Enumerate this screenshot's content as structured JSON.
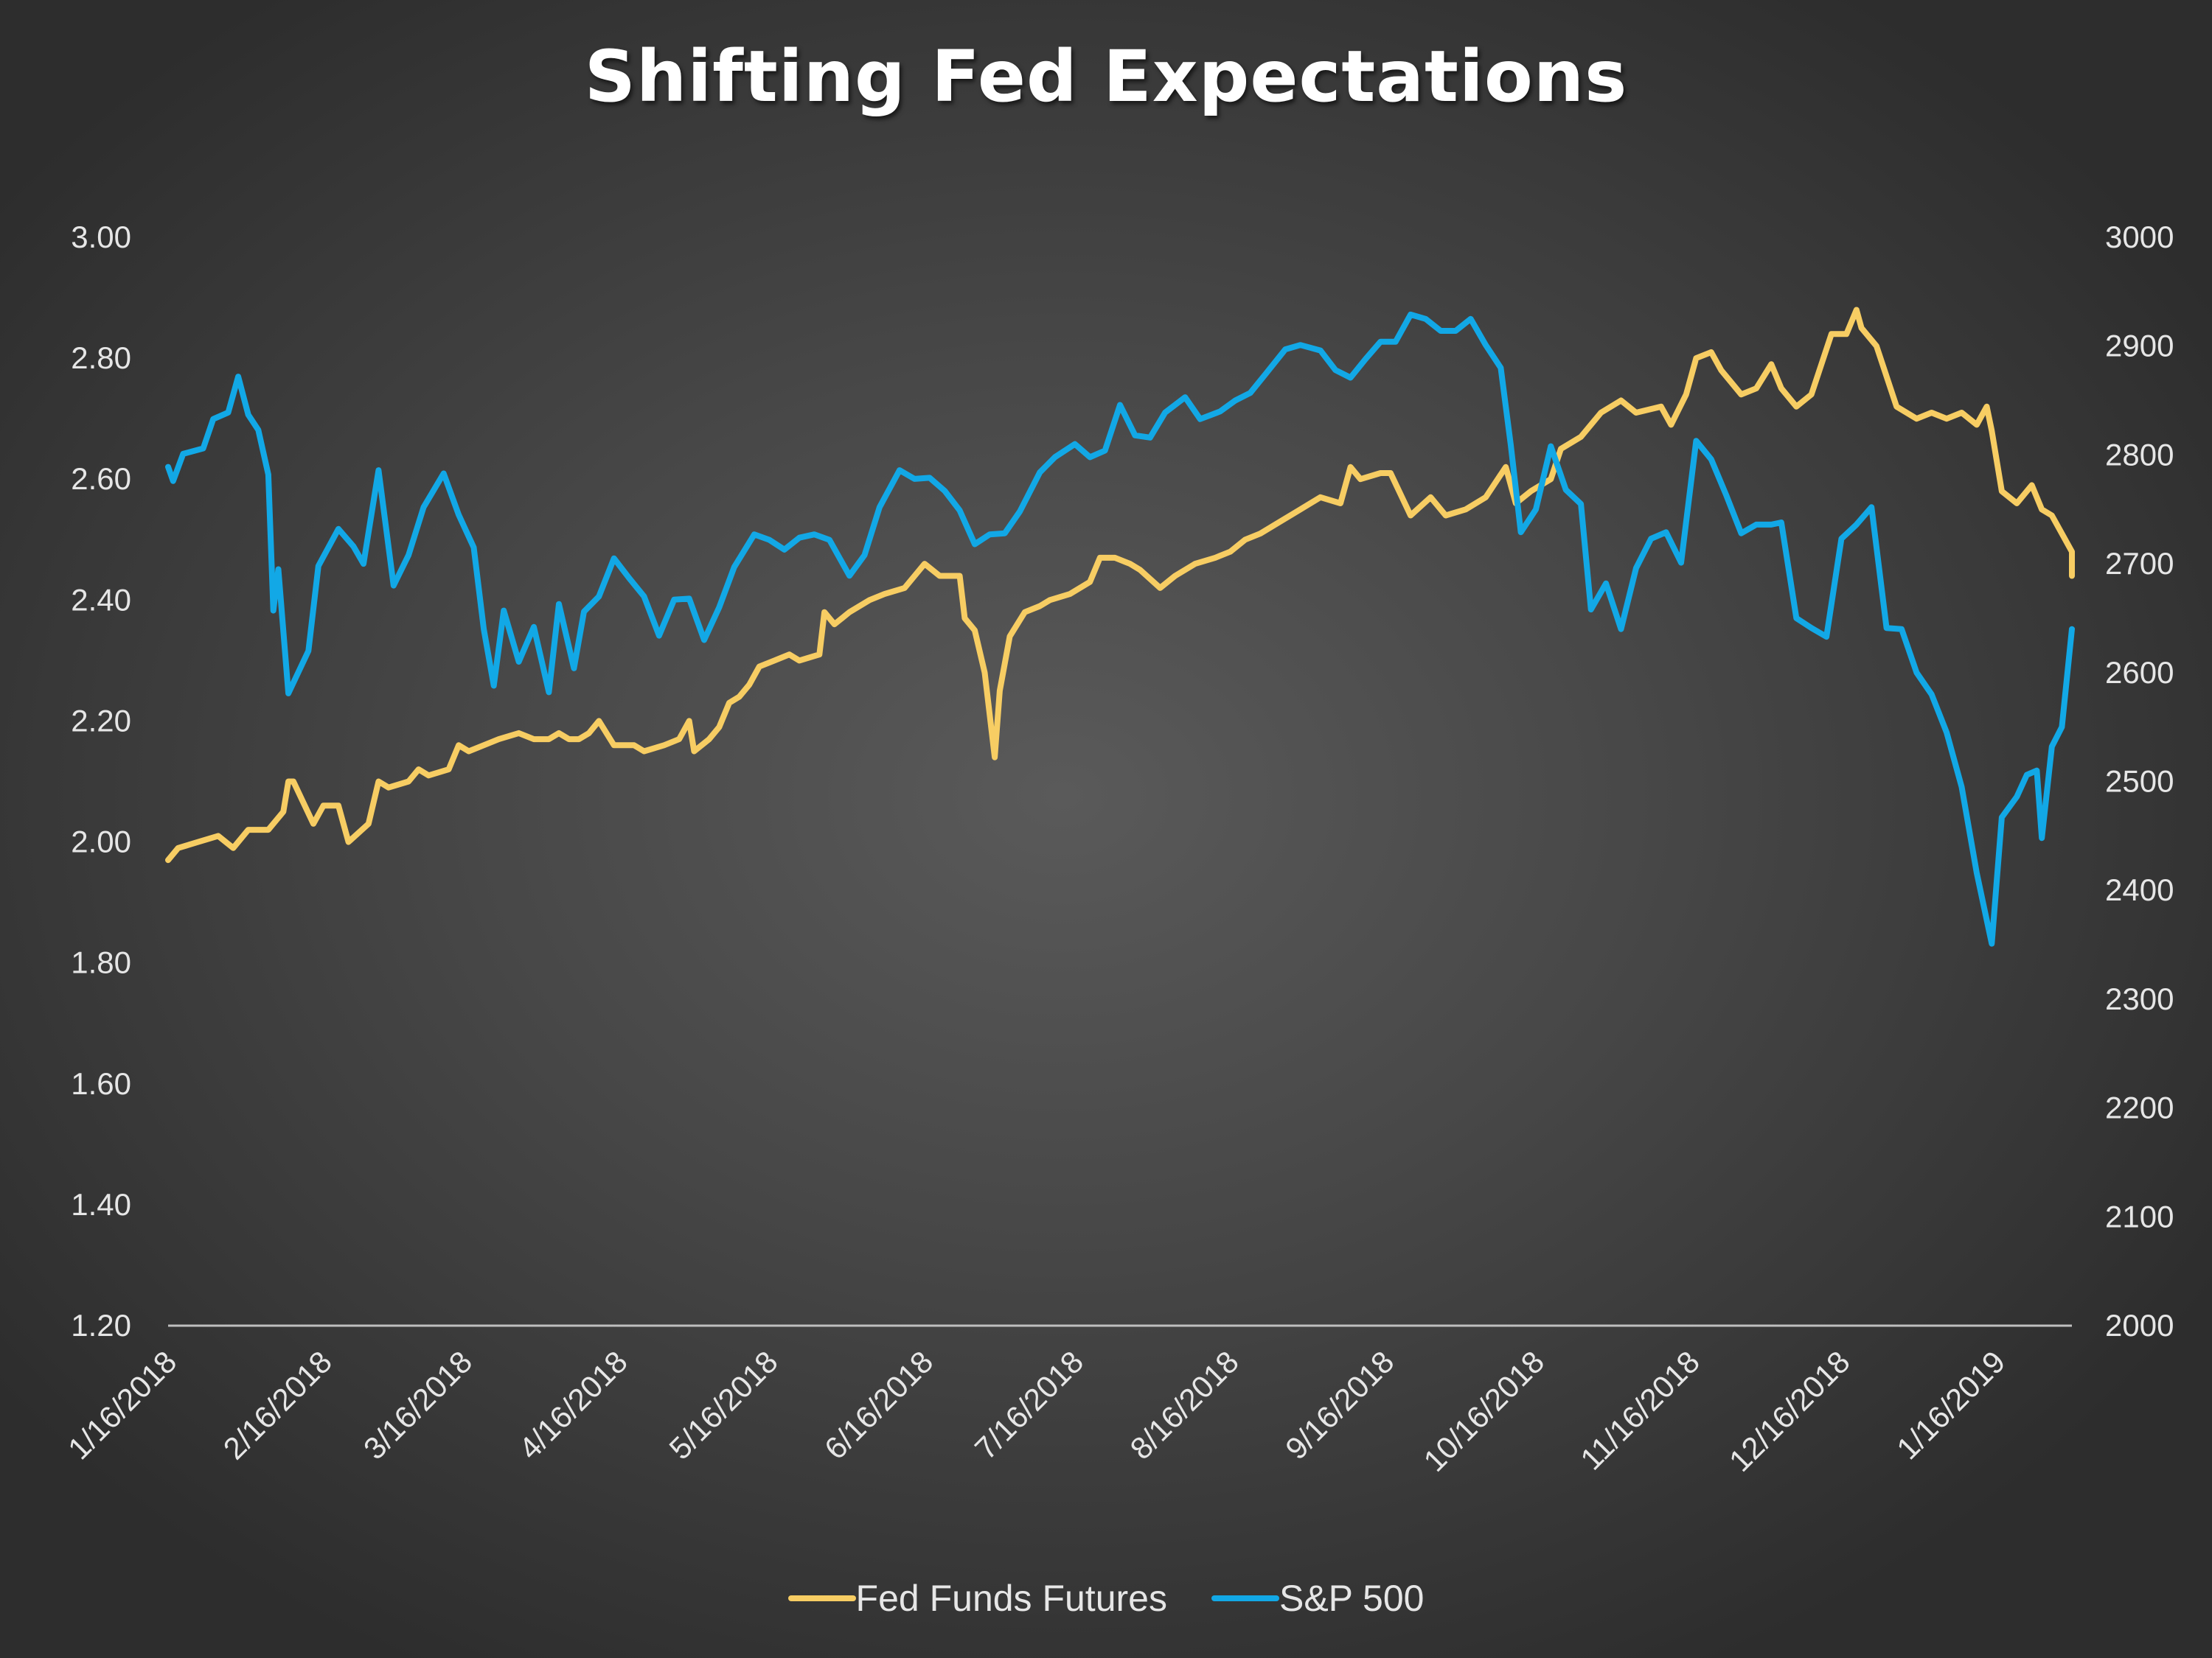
{
  "chart_data": {
    "type": "line",
    "title": "Shifting Fed Expectations",
    "colors": {
      "fed": "#f7cd63",
      "sp": "#12a8e6",
      "axis": "#bfbfbf"
    },
    "y_left": {
      "min": 1.2,
      "max": 3.0,
      "ticks": [
        "3.00",
        "2.80",
        "2.60",
        "2.40",
        "2.20",
        "2.00",
        "1.80",
        "1.60",
        "1.40",
        "1.20"
      ]
    },
    "y_right": {
      "min": 2000,
      "max": 3000,
      "ticks": [
        "3000",
        "2900",
        "2800",
        "2700",
        "2600",
        "2500",
        "2400",
        "2300",
        "2200",
        "2100",
        "2000"
      ]
    },
    "x_ticks": [
      "1/16/2018",
      "2/16/2018",
      "3/16/2018",
      "4/16/2018",
      "5/16/2018",
      "6/16/2018",
      "7/16/2018",
      "8/16/2018",
      "9/16/2018",
      "10/16/2018",
      "11/16/2018",
      "12/16/2018",
      "1/16/2019"
    ],
    "x_range": [
      "2018-01-16",
      "2019-01-31"
    ],
    "legend": [
      "Fed Funds Futures",
      "S&P 500"
    ],
    "series": [
      {
        "name": "Fed Funds Futures",
        "axis": "left",
        "points": [
          [
            "2018-01-16",
            1.97
          ],
          [
            "2018-01-18",
            1.99
          ],
          [
            "2018-01-22",
            2.0
          ],
          [
            "2018-01-26",
            2.01
          ],
          [
            "2018-01-29",
            1.99
          ],
          [
            "2018-02-01",
            2.02
          ],
          [
            "2018-02-05",
            2.02
          ],
          [
            "2018-02-08",
            2.05
          ],
          [
            "2018-02-09",
            2.1
          ],
          [
            "2018-02-10",
            2.1
          ],
          [
            "2018-02-14",
            2.03
          ],
          [
            "2018-02-16",
            2.06
          ],
          [
            "2018-02-19",
            2.06
          ],
          [
            "2018-02-21",
            2.0
          ],
          [
            "2018-02-25",
            2.03
          ],
          [
            "2018-02-27",
            2.1
          ],
          [
            "2018-03-01",
            2.09
          ],
          [
            "2018-03-05",
            2.1
          ],
          [
            "2018-03-07",
            2.12
          ],
          [
            "2018-03-09",
            2.11
          ],
          [
            "2018-03-13",
            2.12
          ],
          [
            "2018-03-15",
            2.16
          ],
          [
            "2018-03-17",
            2.15
          ],
          [
            "2018-03-20",
            2.16
          ],
          [
            "2018-03-23",
            2.17
          ],
          [
            "2018-03-27",
            2.18
          ],
          [
            "2018-03-30",
            2.17
          ],
          [
            "2018-04-02",
            2.17
          ],
          [
            "2018-04-04",
            2.18
          ],
          [
            "2018-04-06",
            2.17
          ],
          [
            "2018-04-08",
            2.17
          ],
          [
            "2018-04-10",
            2.18
          ],
          [
            "2018-04-12",
            2.2
          ],
          [
            "2018-04-15",
            2.16
          ],
          [
            "2018-04-19",
            2.16
          ],
          [
            "2018-04-21",
            2.15
          ],
          [
            "2018-04-25",
            2.16
          ],
          [
            "2018-04-28",
            2.17
          ],
          [
            "2018-04-30",
            2.2
          ],
          [
            "2018-05-01",
            2.15
          ],
          [
            "2018-05-04",
            2.17
          ],
          [
            "2018-05-06",
            2.19
          ],
          [
            "2018-05-08",
            2.23
          ],
          [
            "2018-05-10",
            2.24
          ],
          [
            "2018-05-12",
            2.26
          ],
          [
            "2018-05-14",
            2.29
          ],
          [
            "2018-05-17",
            2.3
          ],
          [
            "2018-05-20",
            2.31
          ],
          [
            "2018-05-22",
            2.3
          ],
          [
            "2018-05-26",
            2.31
          ],
          [
            "2018-05-27",
            2.38
          ],
          [
            "2018-05-29",
            2.36
          ],
          [
            "2018-06-01",
            2.38
          ],
          [
            "2018-06-05",
            2.4
          ],
          [
            "2018-06-08",
            2.41
          ],
          [
            "2018-06-12",
            2.42
          ],
          [
            "2018-06-14",
            2.44
          ],
          [
            "2018-06-16",
            2.46
          ],
          [
            "2018-06-19",
            2.44
          ],
          [
            "2018-06-23",
            2.44
          ],
          [
            "2018-06-24",
            2.37
          ],
          [
            "2018-06-26",
            2.35
          ],
          [
            "2018-06-28",
            2.28
          ],
          [
            "2018-06-30",
            2.14
          ],
          [
            "2018-07-01",
            2.25
          ],
          [
            "2018-07-03",
            2.34
          ],
          [
            "2018-07-06",
            2.38
          ],
          [
            "2018-07-09",
            2.39
          ],
          [
            "2018-07-11",
            2.4
          ],
          [
            "2018-07-15",
            2.41
          ],
          [
            "2018-07-19",
            2.43
          ],
          [
            "2018-07-21",
            2.47
          ],
          [
            "2018-07-24",
            2.47
          ],
          [
            "2018-07-27",
            2.46
          ],
          [
            "2018-07-29",
            2.45
          ],
          [
            "2018-08-02",
            2.42
          ],
          [
            "2018-08-05",
            2.44
          ],
          [
            "2018-08-09",
            2.46
          ],
          [
            "2018-08-13",
            2.47
          ],
          [
            "2018-08-16",
            2.48
          ],
          [
            "2018-08-19",
            2.5
          ],
          [
            "2018-08-22",
            2.51
          ],
          [
            "2018-08-26",
            2.53
          ],
          [
            "2018-08-30",
            2.55
          ],
          [
            "2018-09-03",
            2.57
          ],
          [
            "2018-09-07",
            2.56
          ],
          [
            "2018-09-09",
            2.62
          ],
          [
            "2018-09-11",
            2.6
          ],
          [
            "2018-09-15",
            2.61
          ],
          [
            "2018-09-17",
            2.61
          ],
          [
            "2018-09-21",
            2.54
          ],
          [
            "2018-09-25",
            2.57
          ],
          [
            "2018-09-28",
            2.54
          ],
          [
            "2018-10-02",
            2.55
          ],
          [
            "2018-10-06",
            2.57
          ],
          [
            "2018-10-10",
            2.62
          ],
          [
            "2018-10-12",
            2.56
          ],
          [
            "2018-10-15",
            2.58
          ],
          [
            "2018-10-19",
            2.6
          ],
          [
            "2018-10-21",
            2.65
          ],
          [
            "2018-10-25",
            2.67
          ],
          [
            "2018-10-29",
            2.71
          ],
          [
            "2018-11-02",
            2.73
          ],
          [
            "2018-11-05",
            2.71
          ],
          [
            "2018-11-10",
            2.72
          ],
          [
            "2018-11-12",
            2.69
          ],
          [
            "2018-11-15",
            2.74
          ],
          [
            "2018-11-17",
            2.8
          ],
          [
            "2018-11-20",
            2.81
          ],
          [
            "2018-11-22",
            2.78
          ],
          [
            "2018-11-24",
            2.76
          ],
          [
            "2018-11-26",
            2.74
          ],
          [
            "2018-11-29",
            2.75
          ],
          [
            "2018-12-02",
            2.79
          ],
          [
            "2018-12-04",
            2.75
          ],
          [
            "2018-12-07",
            2.72
          ],
          [
            "2018-12-10",
            2.74
          ],
          [
            "2018-12-14",
            2.84
          ],
          [
            "2018-12-17",
            2.84
          ],
          [
            "2018-12-19",
            2.88
          ],
          [
            "2018-12-20",
            2.85
          ],
          [
            "2018-12-23",
            2.82
          ],
          [
            "2018-12-25",
            2.77
          ],
          [
            "2018-12-27",
            2.72
          ],
          [
            "2018-12-31",
            2.7
          ],
          [
            "2019-01-03",
            2.71
          ],
          [
            "2019-01-06",
            2.7
          ],
          [
            "2019-01-09",
            2.71
          ],
          [
            "2019-01-12",
            2.69
          ],
          [
            "2019-01-14",
            2.72
          ],
          [
            "2019-01-15",
            2.68
          ],
          [
            "2019-01-17",
            2.58
          ],
          [
            "2019-01-20",
            2.56
          ],
          [
            "2019-01-23",
            2.59
          ],
          [
            "2019-01-25",
            2.55
          ],
          [
            "2019-01-27",
            2.54
          ],
          [
            "2019-01-29",
            2.51
          ],
          [
            "2019-01-31",
            2.48
          ],
          [
            "2019-01-31",
            2.44
          ]
        ]
      },
      {
        "name": "S&P 500",
        "axis": "right",
        "points": [
          [
            "2018-01-16",
            2789
          ],
          [
            "2018-01-17",
            2776
          ],
          [
            "2018-01-19",
            2801
          ],
          [
            "2018-01-23",
            2806
          ],
          [
            "2018-01-25",
            2833
          ],
          [
            "2018-01-28",
            2839
          ],
          [
            "2018-01-30",
            2872
          ],
          [
            "2018-02-01",
            2837
          ],
          [
            "2018-02-03",
            2823
          ],
          [
            "2018-02-05",
            2782
          ],
          [
            "2018-02-06",
            2657
          ],
          [
            "2018-02-07",
            2695
          ],
          [
            "2018-02-09",
            2581
          ],
          [
            "2018-02-13",
            2620
          ],
          [
            "2018-02-15",
            2698
          ],
          [
            "2018-02-19",
            2732
          ],
          [
            "2018-02-22",
            2716
          ],
          [
            "2018-02-24",
            2700
          ],
          [
            "2018-02-27",
            2786
          ],
          [
            "2018-03-02",
            2680
          ],
          [
            "2018-03-05",
            2708
          ],
          [
            "2018-03-08",
            2752
          ],
          [
            "2018-03-12",
            2783
          ],
          [
            "2018-03-15",
            2745
          ],
          [
            "2018-03-18",
            2715
          ],
          [
            "2018-03-20",
            2640
          ],
          [
            "2018-03-22",
            2588
          ],
          [
            "2018-03-24",
            2657
          ],
          [
            "2018-03-27",
            2610
          ],
          [
            "2018-03-30",
            2642
          ],
          [
            "2018-04-02",
            2582
          ],
          [
            "2018-04-04",
            2663
          ],
          [
            "2018-04-07",
            2604
          ],
          [
            "2018-04-09",
            2656
          ],
          [
            "2018-04-12",
            2670
          ],
          [
            "2018-04-15",
            2705
          ],
          [
            "2018-04-18",
            2687
          ],
          [
            "2018-04-21",
            2670
          ],
          [
            "2018-04-24",
            2634
          ],
          [
            "2018-04-27",
            2667
          ],
          [
            "2018-04-30",
            2668
          ],
          [
            "2018-05-03",
            2630
          ],
          [
            "2018-05-06",
            2660
          ],
          [
            "2018-05-09",
            2697
          ],
          [
            "2018-05-13",
            2727
          ],
          [
            "2018-05-16",
            2722
          ],
          [
            "2018-05-19",
            2713
          ],
          [
            "2018-05-22",
            2724
          ],
          [
            "2018-05-25",
            2727
          ],
          [
            "2018-05-28",
            2722
          ],
          [
            "2018-06-01",
            2689
          ],
          [
            "2018-06-04",
            2708
          ],
          [
            "2018-06-07",
            2752
          ],
          [
            "2018-06-11",
            2786
          ],
          [
            "2018-06-14",
            2778
          ],
          [
            "2018-06-17",
            2779
          ],
          [
            "2018-06-20",
            2767
          ],
          [
            "2018-06-23",
            2749
          ],
          [
            "2018-06-26",
            2718
          ],
          [
            "2018-06-29",
            2727
          ],
          [
            "2018-07-02",
            2728
          ],
          [
            "2018-07-05",
            2748
          ],
          [
            "2018-07-09",
            2784
          ],
          [
            "2018-07-12",
            2798
          ],
          [
            "2018-07-16",
            2810
          ],
          [
            "2018-07-19",
            2798
          ],
          [
            "2018-07-22",
            2804
          ],
          [
            "2018-07-25",
            2846
          ],
          [
            "2018-07-28",
            2818
          ],
          [
            "2018-07-31",
            2816
          ],
          [
            "2018-08-03",
            2839
          ],
          [
            "2018-08-07",
            2853
          ],
          [
            "2018-08-10",
            2833
          ],
          [
            "2018-08-14",
            2840
          ],
          [
            "2018-08-17",
            2850
          ],
          [
            "2018-08-20",
            2857
          ],
          [
            "2018-08-23",
            2874
          ],
          [
            "2018-08-27",
            2897
          ],
          [
            "2018-08-30",
            2901
          ],
          [
            "2018-09-03",
            2896
          ],
          [
            "2018-09-06",
            2878
          ],
          [
            "2018-09-09",
            2871
          ],
          [
            "2018-09-12",
            2888
          ],
          [
            "2018-09-15",
            2904
          ],
          [
            "2018-09-18",
            2904
          ],
          [
            "2018-09-21",
            2929
          ],
          [
            "2018-09-24",
            2925
          ],
          [
            "2018-09-27",
            2914
          ],
          [
            "2018-09-30",
            2914
          ],
          [
            "2018-10-03",
            2925
          ],
          [
            "2018-10-06",
            2901
          ],
          [
            "2018-10-09",
            2880
          ],
          [
            "2018-10-11",
            2809
          ],
          [
            "2018-10-13",
            2729
          ],
          [
            "2018-10-16",
            2750
          ],
          [
            "2018-10-19",
            2808
          ],
          [
            "2018-10-22",
            2768
          ],
          [
            "2018-10-25",
            2755
          ],
          [
            "2018-10-27",
            2658
          ],
          [
            "2018-10-30",
            2682
          ],
          [
            "2018-11-02",
            2640
          ],
          [
            "2018-11-05",
            2696
          ],
          [
            "2018-11-08",
            2723
          ],
          [
            "2018-11-11",
            2729
          ],
          [
            "2018-11-14",
            2701
          ],
          [
            "2018-11-17",
            2813
          ],
          [
            "2018-11-20",
            2796
          ],
          [
            "2018-11-23",
            2763
          ],
          [
            "2018-11-26",
            2728
          ],
          [
            "2018-11-29",
            2736
          ],
          [
            "2018-12-02",
            2736
          ],
          [
            "2018-12-04",
            2738
          ],
          [
            "2018-12-07",
            2650
          ],
          [
            "2018-12-10",
            2641
          ],
          [
            "2018-12-13",
            2633
          ],
          [
            "2018-12-16",
            2723
          ],
          [
            "2018-12-19",
            2736
          ],
          [
            "2018-12-22",
            2752
          ],
          [
            "2018-12-25",
            2641
          ],
          [
            "2018-12-28",
            2640
          ],
          [
            "2018-12-31",
            2600
          ],
          [
            "2019-01-03",
            2580
          ],
          [
            "2019-01-06",
            2545
          ],
          [
            "2019-01-09",
            2495
          ],
          [
            "2019-01-12",
            2416
          ],
          [
            "2019-01-15",
            2351
          ],
          [
            "2019-01-17",
            2467
          ],
          [
            "2019-01-20",
            2486
          ],
          [
            "2019-01-22",
            2506
          ],
          [
            "2019-01-24",
            2510
          ],
          [
            "2019-01-25",
            2448
          ],
          [
            "2019-01-27",
            2532
          ],
          [
            "2019-01-29",
            2550
          ],
          [
            "2019-01-31",
            2640
          ]
        ]
      }
    ]
  }
}
